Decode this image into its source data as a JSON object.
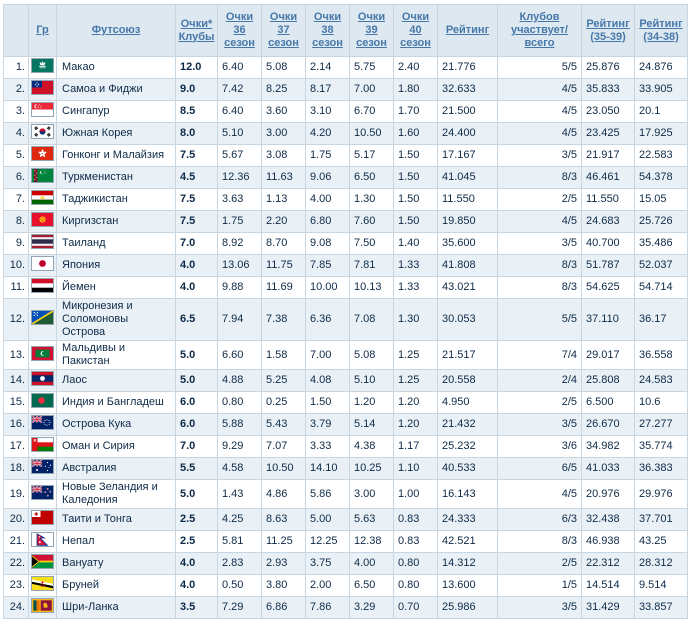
{
  "colors": {
    "header_bg": "#dee8f0",
    "link": "#4678aa",
    "row_alt_bg": "#e9f1f7",
    "row_bg": "#ffffff",
    "text": "#0e2a47",
    "border": "#c8d6e2"
  },
  "header": {
    "rank_label": "",
    "columns": [
      {
        "id": "group",
        "label": "Гр"
      },
      {
        "id": "union",
        "label": "Футсоюз"
      },
      {
        "id": "points-clubs",
        "label": "Очки*\nКлубы"
      },
      {
        "id": "season-36",
        "label": "Очки\n36\nсезон"
      },
      {
        "id": "season-37",
        "label": "Очки\n37\nсезон"
      },
      {
        "id": "season-38",
        "label": "Очки\n38\nсезон"
      },
      {
        "id": "season-39",
        "label": "Очки\n39\nсезон"
      },
      {
        "id": "season-40",
        "label": "Очки\n40\nсезон"
      },
      {
        "id": "rating",
        "label": "Рейтинг"
      },
      {
        "id": "clubs-participating",
        "label": "Клубов\nучаствует/всего"
      },
      {
        "id": "rating-35-39",
        "label": "Рейтинг\n(35-39)"
      },
      {
        "id": "rating-34-38",
        "label": "Рейтинг\n(34-38)"
      }
    ]
  },
  "rows": [
    {
      "rank": "1.",
      "flag": "macau",
      "name": "Макао",
      "points": "12.0",
      "s36": "6.40",
      "s37": "5.08",
      "s38": "2.14",
      "s39": "5.75",
      "s40": "2.40",
      "rating": "21.776",
      "clubs": "5/5",
      "r3539": "25.876",
      "r3438": "24.876"
    },
    {
      "rank": "2.",
      "flag": "samoa",
      "name": "Самоа и Фиджи",
      "points": "9.0",
      "s36": "7.42",
      "s37": "8.25",
      "s38": "8.17",
      "s39": "7.00",
      "s40": "1.80",
      "rating": "32.633",
      "clubs": "4/5",
      "r3539": "35.833",
      "r3438": "33.905"
    },
    {
      "rank": "3.",
      "flag": "singapore",
      "name": "Сингапур",
      "points": "8.5",
      "s36": "6.40",
      "s37": "3.60",
      "s38": "3.10",
      "s39": "6.70",
      "s40": "1.70",
      "rating": "21.500",
      "clubs": "4/5",
      "r3539": "23.050",
      "r3438": "20.1"
    },
    {
      "rank": "4.",
      "flag": "south-korea",
      "name": "Южная Корея",
      "points": "8.0",
      "s36": "5.10",
      "s37": "3.00",
      "s38": "4.20",
      "s39": "10.50",
      "s40": "1.60",
      "rating": "24.400",
      "clubs": "4/5",
      "r3539": "23.425",
      "r3438": "17.925"
    },
    {
      "rank": "5.",
      "flag": "hong-kong",
      "name": "Гонконг и Малайзия",
      "points": "7.5",
      "s36": "5.67",
      "s37": "3.08",
      "s38": "1.75",
      "s39": "5.17",
      "s40": "1.50",
      "rating": "17.167",
      "clubs": "3/5",
      "r3539": "21.917",
      "r3438": "22.583"
    },
    {
      "rank": "6.",
      "flag": "turkmenistan",
      "name": "Туркменистан",
      "points": "4.5",
      "s36": "12.36",
      "s37": "11.63",
      "s38": "9.06",
      "s39": "6.50",
      "s40": "1.50",
      "rating": "41.045",
      "clubs": "8/3",
      "r3539": "46.461",
      "r3438": "54.378"
    },
    {
      "rank": "7.",
      "flag": "tajikistan",
      "name": "Таджикистан",
      "points": "7.5",
      "s36": "3.63",
      "s37": "1.13",
      "s38": "4.00",
      "s39": "1.30",
      "s40": "1.50",
      "rating": "11.550",
      "clubs": "2/5",
      "r3539": "11.550",
      "r3438": "15.05"
    },
    {
      "rank": "8.",
      "flag": "kyrgyzstan",
      "name": "Киргизстан",
      "points": "7.5",
      "s36": "1.75",
      "s37": "2.20",
      "s38": "6.80",
      "s39": "7.60",
      "s40": "1.50",
      "rating": "19.850",
      "clubs": "4/5",
      "r3539": "24.683",
      "r3438": "25.726"
    },
    {
      "rank": "9.",
      "flag": "thailand",
      "name": "Таиланд",
      "points": "7.0",
      "s36": "8.92",
      "s37": "8.70",
      "s38": "9.08",
      "s39": "7.50",
      "s40": "1.40",
      "rating": "35.600",
      "clubs": "3/5",
      "r3539": "40.700",
      "r3438": "35.486"
    },
    {
      "rank": "10.",
      "flag": "japan",
      "name": "Япония",
      "points": "4.0",
      "s36": "13.06",
      "s37": "11.75",
      "s38": "7.85",
      "s39": "7.81",
      "s40": "1.33",
      "rating": "41.808",
      "clubs": "8/3",
      "r3539": "51.787",
      "r3438": "52.037"
    },
    {
      "rank": "11.",
      "flag": "yemen",
      "name": "Йемен",
      "points": "4.0",
      "s36": "9.88",
      "s37": "11.69",
      "s38": "10.00",
      "s39": "10.13",
      "s40": "1.33",
      "rating": "43.021",
      "clubs": "8/3",
      "r3539": "54.625",
      "r3438": "54.714"
    },
    {
      "rank": "12.",
      "flag": "solomon-islands",
      "name": "Микронезия и Соломоновы Острова",
      "points": "6.5",
      "s36": "7.94",
      "s37": "7.38",
      "s38": "6.36",
      "s39": "7.08",
      "s40": "1.30",
      "rating": "30.053",
      "clubs": "5/5",
      "r3539": "37.110",
      "r3438": "36.17"
    },
    {
      "rank": "13.",
      "flag": "maldives",
      "name": "Мальдивы и Пакистан",
      "points": "5.0",
      "s36": "6.60",
      "s37": "1.58",
      "s38": "7.00",
      "s39": "5.08",
      "s40": "1.25",
      "rating": "21.517",
      "clubs": "7/4",
      "r3539": "29.017",
      "r3438": "36.558"
    },
    {
      "rank": "14.",
      "flag": "laos",
      "name": "Лаос",
      "points": "5.0",
      "s36": "4.88",
      "s37": "5.25",
      "s38": "4.08",
      "s39": "5.10",
      "s40": "1.25",
      "rating": "20.558",
      "clubs": "2/4",
      "r3539": "25.808",
      "r3438": "24.583"
    },
    {
      "rank": "15.",
      "flag": "bangladesh",
      "name": "Индия и Бангладеш",
      "points": "6.0",
      "s36": "0.80",
      "s37": "0.25",
      "s38": "1.50",
      "s39": "1.20",
      "s40": "1.20",
      "rating": "4.950",
      "clubs": "2/5",
      "r3539": "6.500",
      "r3438": "10.6"
    },
    {
      "rank": "16.",
      "flag": "cook-islands",
      "name": "Острова Кука",
      "points": "6.0",
      "s36": "5.88",
      "s37": "5.43",
      "s38": "3.79",
      "s39": "5.14",
      "s40": "1.20",
      "rating": "21.432",
      "clubs": "3/5",
      "r3539": "26.670",
      "r3438": "27.277"
    },
    {
      "rank": "17.",
      "flag": "oman",
      "name": "Оман и Сирия",
      "points": "7.0",
      "s36": "9.29",
      "s37": "7.07",
      "s38": "3.33",
      "s39": "4.38",
      "s40": "1.17",
      "rating": "25.232",
      "clubs": "3/6",
      "r3539": "34.982",
      "r3438": "35.774"
    },
    {
      "rank": "18.",
      "flag": "australia",
      "name": "Австралия",
      "points": "5.5",
      "s36": "4.58",
      "s37": "10.50",
      "s38": "14.10",
      "s39": "10.25",
      "s40": "1.10",
      "rating": "40.533",
      "clubs": "6/5",
      "r3539": "41.033",
      "r3438": "36.383"
    },
    {
      "rank": "19.",
      "flag": "new-zealand",
      "name": "Новые Зеландия и Каледония",
      "points": "5.0",
      "s36": "1.43",
      "s37": "4.86",
      "s38": "5.86",
      "s39": "3.00",
      "s40": "1.00",
      "rating": "16.143",
      "clubs": "4/5",
      "r3539": "20.976",
      "r3438": "29.976"
    },
    {
      "rank": "20.",
      "flag": "tonga",
      "name": "Таити и Тонга",
      "points": "2.5",
      "s36": "4.25",
      "s37": "8.63",
      "s38": "5.00",
      "s39": "5.63",
      "s40": "0.83",
      "rating": "24.333",
      "clubs": "6/3",
      "r3539": "32.438",
      "r3438": "37.701"
    },
    {
      "rank": "21.",
      "flag": "nepal",
      "name": "Непал",
      "points": "2.5",
      "s36": "5.81",
      "s37": "11.25",
      "s38": "12.25",
      "s39": "12.38",
      "s40": "0.83",
      "rating": "42.521",
      "clubs": "8/3",
      "r3539": "46.938",
      "r3438": "43.25"
    },
    {
      "rank": "22.",
      "flag": "vanuatu",
      "name": "Вануату",
      "points": "4.0",
      "s36": "2.83",
      "s37": "2.93",
      "s38": "3.75",
      "s39": "4.00",
      "s40": "0.80",
      "rating": "14.312",
      "clubs": "2/5",
      "r3539": "22.312",
      "r3438": "28.312"
    },
    {
      "rank": "23.",
      "flag": "brunei",
      "name": "Бруней",
      "points": "4.0",
      "s36": "0.50",
      "s37": "3.80",
      "s38": "2.00",
      "s39": "6.50",
      "s40": "0.80",
      "rating": "13.600",
      "clubs": "1/5",
      "r3539": "14.514",
      "r3438": "9.514"
    },
    {
      "rank": "24.",
      "flag": "sri-lanka",
      "name": "Шри-Ланка",
      "points": "3.5",
      "s36": "7.29",
      "s37": "6.86",
      "s38": "7.86",
      "s39": "3.29",
      "s40": "0.70",
      "rating": "25.986",
      "clubs": "3/5",
      "r3539": "31.429",
      "r3438": "33.857"
    }
  ]
}
